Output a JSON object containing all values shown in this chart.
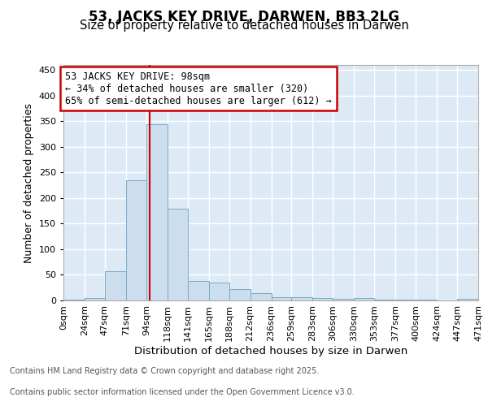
{
  "title": "53, JACKS KEY DRIVE, DARWEN, BB3 2LG",
  "subtitle": "Size of property relative to detached houses in Darwen",
  "xlabel": "Distribution of detached houses by size in Darwen",
  "ylabel": "Number of detached properties",
  "bin_labels": [
    "0sqm",
    "24sqm",
    "47sqm",
    "71sqm",
    "94sqm",
    "118sqm",
    "141sqm",
    "165sqm",
    "188sqm",
    "212sqm",
    "236sqm",
    "259sqm",
    "283sqm",
    "306sqm",
    "330sqm",
    "353sqm",
    "377sqm",
    "400sqm",
    "424sqm",
    "447sqm",
    "471sqm"
  ],
  "bar_values": [
    2,
    4,
    57,
    235,
    345,
    180,
    38,
    35,
    23,
    15,
    6,
    6,
    5,
    3,
    4,
    2,
    1,
    1,
    0,
    3
  ],
  "bar_color": "#ccdded",
  "bar_edgecolor": "#7aaac8",
  "bar_linewidth": 0.7,
  "grid_color": "#ffffff",
  "bg_color": "#ddeaf5",
  "red_line_x": 98,
  "annotation_text": "53 JACKS KEY DRIVE: 98sqm\n← 34% of detached houses are smaller (320)\n65% of semi-detached houses are larger (612) →",
  "annotation_box_facecolor": "#ffffff",
  "annotation_border_color": "#cc0000",
  "ylim": [
    0,
    460
  ],
  "yticks": [
    0,
    50,
    100,
    150,
    200,
    250,
    300,
    350,
    400,
    450
  ],
  "footer_line1": "Contains HM Land Registry data © Crown copyright and database right 2025.",
  "footer_line2": "Contains public sector information licensed under the Open Government Licence v3.0.",
  "title_fontsize": 12,
  "subtitle_fontsize": 10.5,
  "xlabel_fontsize": 9.5,
  "ylabel_fontsize": 9,
  "tick_fontsize": 8,
  "annotation_fontsize": 8.5,
  "footer_fontsize": 7
}
